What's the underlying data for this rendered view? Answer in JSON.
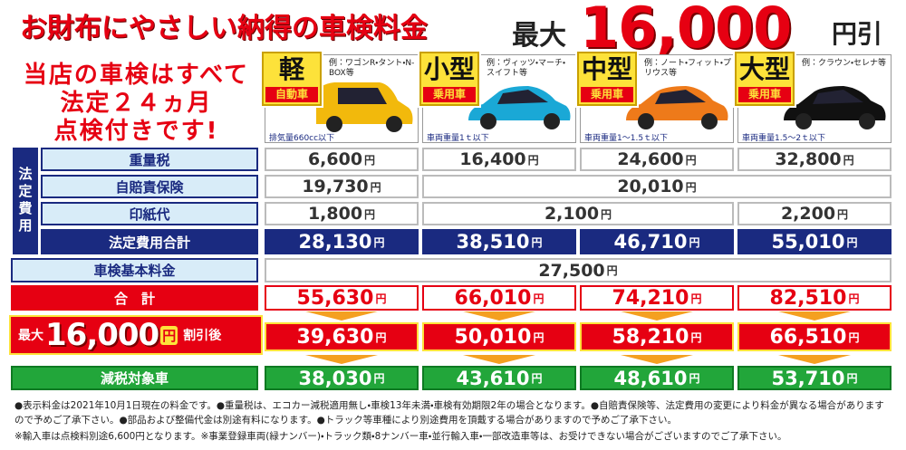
{
  "header": {
    "title": "お財布にやさしい納得の車検料金",
    "max_label": "最大",
    "max_amount": "16,000",
    "max_suffix": "円引"
  },
  "tagline": [
    "当店の車検はすべて",
    "法定２４ヵ月",
    "点検付きです!"
  ],
  "unit": "円",
  "cars": [
    {
      "class": "軽",
      "kind": "自動車",
      "example": "例：ワゴンR・タント・N-BOX等",
      "spec": "排気量660cc以下"
    },
    {
      "class": "小型",
      "kind": "乗用車",
      "example": "例：ヴィッツ・マーチ・スイフト等",
      "spec": "車両重量1ｔ以下"
    },
    {
      "class": "中型",
      "kind": "乗用車",
      "example": "例：ノート・フィット・プリウス等",
      "spec": "車両重量1～1.5ｔ以下"
    },
    {
      "class": "大型",
      "kind": "乗用車",
      "example": "例：クラウン・セレナ等",
      "spec": "車両重量1.5～2ｔ以下"
    }
  ],
  "legal_fees_label": "法定費用",
  "rows": [
    {
      "label": "重量税",
      "cells": [
        "6,600",
        "16,400",
        "24,600",
        "32,800"
      ]
    },
    {
      "label": "自賠責保険",
      "cells": [
        "19,730",
        "20,010"
      ]
    },
    {
      "label": "印紙代",
      "cells": [
        "1,800",
        "2,100",
        "2,200"
      ]
    },
    {
      "label": "法定費用合計",
      "cells": [
        "28,130",
        "38,510",
        "46,710",
        "55,010"
      ]
    },
    {
      "label": "車検基本料金",
      "cells": [
        "27,500"
      ]
    },
    {
      "label": "合　計",
      "cells": [
        "55,630",
        "66,010",
        "74,210",
        "82,510"
      ]
    }
  ],
  "discount_row": {
    "max": "最大",
    "amount": "16,000",
    "after": "割引後",
    "cells": [
      "39,630",
      "50,010",
      "58,210",
      "66,510"
    ]
  },
  "tax_row": {
    "label": "減税対象車",
    "cells": [
      "38,030",
      "43,610",
      "48,610",
      "53,710"
    ]
  },
  "notes": [
    "●表示料金は2021年10月1日現在の料金です。●重量税は、エコカー減税適用無し・車検13年未満・車検有効期限2年の場合となります。●自賠責保険等、法定費用の変更により料金が異なる場合がありますので予めご了承下さい。●部品および整備代金は別途有料になります。●トラック等車種により別途費用を頂戴する場合がありますので予めご了承下さい。",
    "※輸入車は点検料別途6,600円となります。※事業登録車両(緑ナンバー)・トラック類・8ナンバー車・並行輸入車・一部改造車等は、お受けできない場合がございますのでご了承下さい。"
  ]
}
